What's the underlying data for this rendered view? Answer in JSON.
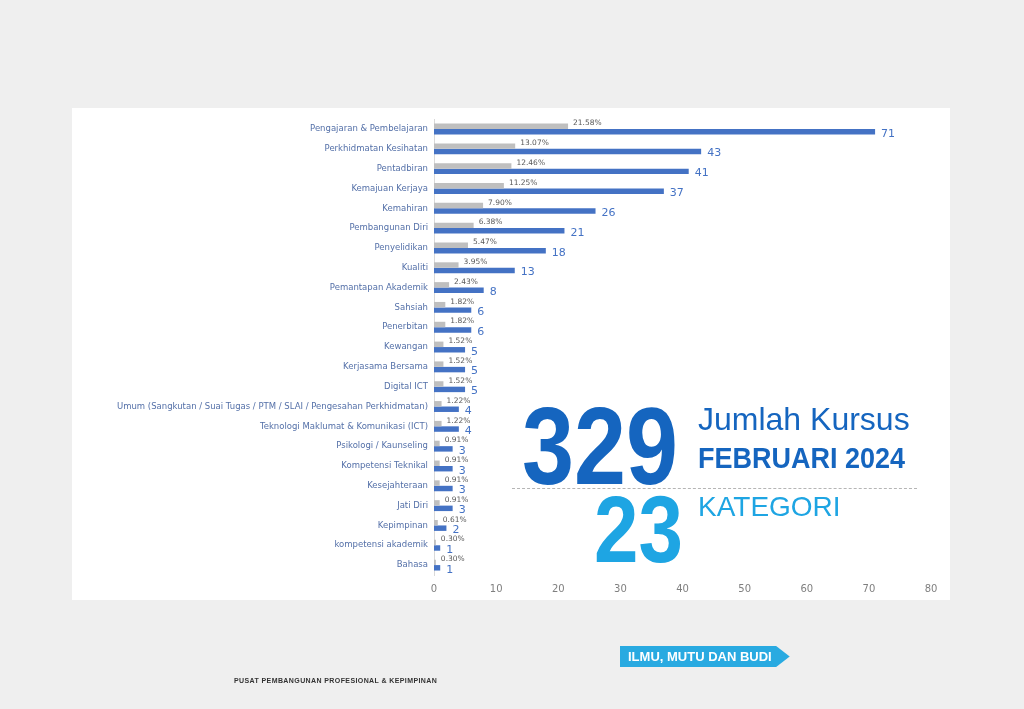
{
  "chart_data": {
    "type": "bar",
    "orientation": "horizontal",
    "categories": [
      "Pengajaran & Pembelajaran",
      "Perkhidmatan Kesihatan",
      "Pentadbiran",
      "Kemajuan Kerjaya",
      "Kemahiran",
      "Pembangunan Diri",
      "Penyelidikan",
      "Kualiti",
      "Pemantapan Akademik",
      "Sahsiah",
      "Penerbitan",
      "Kewangan",
      "Kerjasama Bersama",
      "Digital ICT",
      "Umum (Sangkutan / Suai Tugas / PTM / SLAI / Pengesahan Perkhidmatan)",
      "Teknologi Maklumat & Komunikasi (ICT)",
      "Psikologi / Kaunseling",
      "Kompetensi Teknikal",
      "Kesejahteraan",
      "Jati Diri",
      "Kepimpinan",
      "kompetensi akademik",
      "Bahasa"
    ],
    "series": [
      {
        "color": "#bfbfbf",
        "values": [
          21.58,
          13.07,
          12.46,
          11.25,
          7.9,
          6.38,
          5.47,
          3.95,
          2.43,
          1.82,
          1.82,
          1.52,
          1.52,
          1.52,
          1.22,
          1.22,
          0.91,
          0.91,
          0.91,
          0.91,
          0.61,
          0.3,
          0.3
        ],
        "value_labels": [
          "21.58%",
          "13.07%",
          "12.46%",
          "11.25%",
          "7.90%",
          "6.38%",
          "5.47%",
          "3.95%",
          "2.43%",
          "1.82%",
          "1.82%",
          "1.52%",
          "1.52%",
          "1.52%",
          "1.22%",
          "1.22%",
          "0.91%",
          "0.91%",
          "0.91%",
          "0.91%",
          "0.61%",
          "0.30%",
          "0.30%"
        ]
      },
      {
        "color": "#4472c4",
        "values": [
          71,
          43,
          41,
          37,
          26,
          21,
          18,
          13,
          8,
          6,
          6,
          5,
          5,
          5,
          4,
          4,
          3,
          3,
          3,
          3,
          2,
          1,
          1
        ],
        "value_labels": [
          "71",
          "43",
          "41",
          "37",
          "26",
          "21",
          "18",
          "13",
          "8",
          "6",
          "6",
          "5",
          "5",
          "5",
          "4",
          "4",
          "3",
          "3",
          "3",
          "3",
          "2",
          "1",
          "1"
        ]
      }
    ],
    "xlim": [
      0,
      80
    ],
    "xticks": [
      0,
      10,
      20,
      30,
      40,
      50,
      60,
      70,
      80
    ],
    "annotations": [
      "329",
      "Jumlah Kursus",
      "FEBRUARI 2024",
      "23",
      "KATEGORI",
      "PUSAT PEMBANGUNAN PROFESIONAL & KEPIMPINAN",
      "ILMU, MUTU DAN BUDI"
    ]
  }
}
